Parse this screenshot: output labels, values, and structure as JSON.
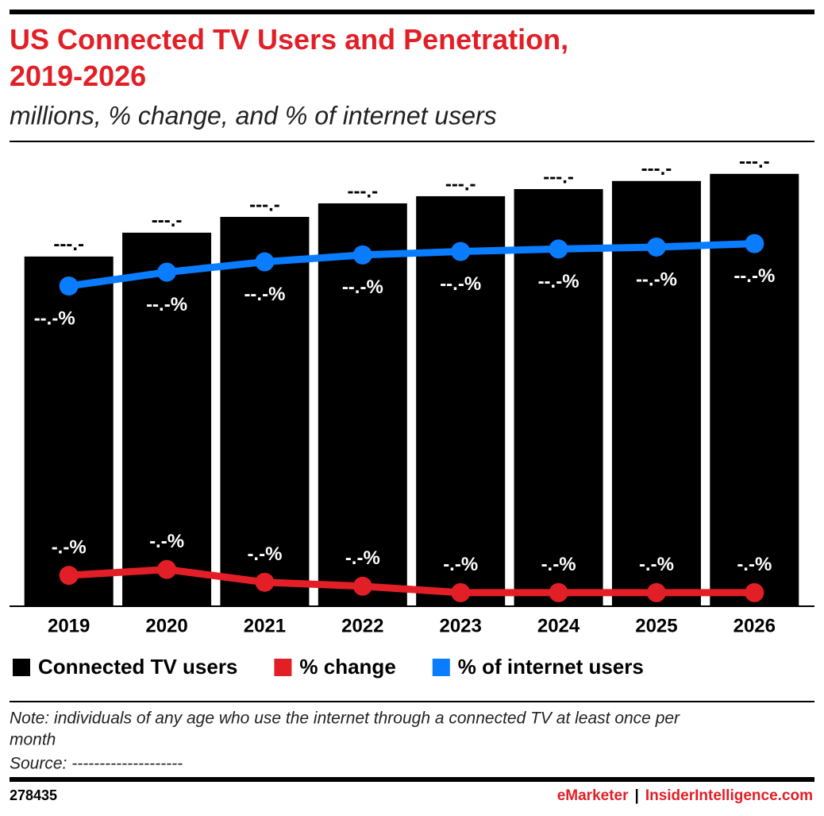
{
  "chart_data": {
    "type": "bar_line",
    "title": "US Connected TV Users and Penetration, 2019-2026",
    "subtitle": "millions, % change, and % of internet users",
    "categories": [
      "2019",
      "2020",
      "2021",
      "2022",
      "2023",
      "2024",
      "2025",
      "2026"
    ],
    "ylim": [
      0,
      244
    ],
    "y2lim": [
      0,
      93
    ],
    "series": [
      {
        "name": "Connected TV users",
        "color": "#000000",
        "kind": "bar",
        "values": [
          185.7,
          198.4,
          206.8,
          214.0,
          217.8,
          221.6,
          225.9,
          229.7
        ],
        "value_labels": [
          "---.-",
          "---.-",
          "---.-",
          "---.-",
          "---.-",
          "---.-",
          "---.-",
          "---.-"
        ]
      },
      {
        "name": "% change",
        "color": "#e21f26",
        "kind": "line",
        "axis": "y2",
        "values": [
          6.1,
          7.3,
          4.7,
          3.9,
          2.6,
          2.6,
          2.6,
          2.6
        ],
        "value_labels": [
          "-.-%",
          "-.-%",
          "-.-%",
          "-.-%",
          "-.-%",
          "-.-%",
          "-.-%",
          "-.-%"
        ]
      },
      {
        "name": "% of internet users",
        "color": "#0a7cff",
        "kind": "line",
        "axis": "y2",
        "values": [
          64.8,
          67.6,
          69.7,
          71.1,
          71.8,
          72.3,
          72.7,
          73.4
        ],
        "value_labels": [
          "--.-%",
          "--.-%",
          "--.-%",
          "--.-%",
          "--.-%",
          "--.-%",
          "--.-%",
          "--.-%"
        ]
      }
    ],
    "note": "Note: individuals of any age who use the internet through a connected TV at least once per",
    "note_cont": "month",
    "source": "Source: --------------------",
    "chart_id": "278435",
    "brand": "eMarketer",
    "separator": "|",
    "brand2": "InsiderIntelligence.com"
  }
}
